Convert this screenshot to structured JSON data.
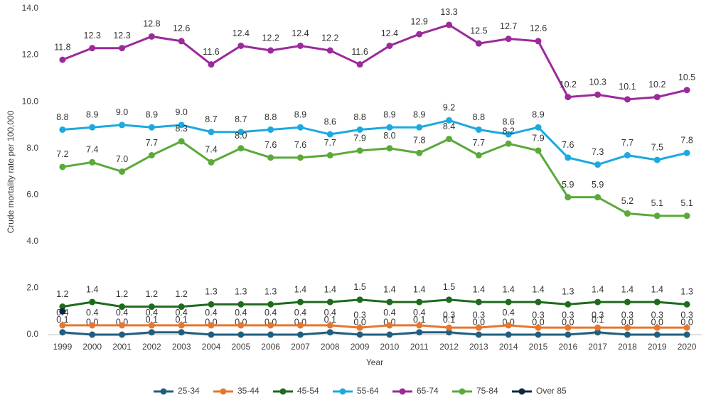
{
  "chart_data": {
    "type": "line",
    "y_label": "Crude mortality rate per 100,000",
    "x_label": "Year",
    "categories": [
      "1999",
      "2000",
      "2001",
      "2002",
      "2003",
      "2004",
      "2005",
      "2006",
      "2007",
      "2008",
      "2009",
      "2010",
      "2011",
      "2012",
      "2013",
      "2014",
      "2015",
      "2016",
      "2017",
      "2018",
      "2019",
      "2020"
    ],
    "ylim": [
      0,
      14
    ],
    "yticks": [
      {
        "value": 0,
        "label": "0.0"
      },
      {
        "value": 2,
        "label": "2.0"
      },
      {
        "value": 4,
        "label": "4.0"
      },
      {
        "value": 6,
        "label": "6.0"
      },
      {
        "value": 8,
        "label": "8.0"
      },
      {
        "value": 10,
        "label": "10.0"
      },
      {
        "value": 12,
        "label": "12.0"
      },
      {
        "value": 14,
        "label": "14.0"
      }
    ],
    "grid": false,
    "legend": "bottom",
    "series": [
      {
        "name": "25-34",
        "color": "#1f5f80",
        "values": [
          0.1,
          0.0,
          0.0,
          0.1,
          0.1,
          0.0,
          0.0,
          0.0,
          0.0,
          0.1,
          0.0,
          0.0,
          0.1,
          0.1,
          0.0,
          0.0,
          0.0,
          0.0,
          0.1,
          0.0,
          0.0,
          0.0
        ],
        "value_labels": [
          "0.1",
          "0.0",
          "0.0",
          "0.1",
          "0.1",
          "0.0",
          "0.0",
          "0.0",
          "0.0",
          "0.1",
          "0.0",
          "0.0",
          "0.1",
          "0.1",
          "0.0",
          "0.0",
          "0.0",
          "0.0",
          "0.1",
          "0.0",
          "0.0",
          "0.0"
        ]
      },
      {
        "name": "35-44",
        "color": "#e8762c",
        "values": [
          0.4,
          0.4,
          0.4,
          0.4,
          0.4,
          0.4,
          0.4,
          0.4,
          0.4,
          0.4,
          0.3,
          0.4,
          0.4,
          0.3,
          0.3,
          0.4,
          0.3,
          0.3,
          0.3,
          0.3,
          0.3,
          0.3
        ],
        "value_labels": [
          "0.4",
          "0.4",
          "0.4",
          "0.4",
          "0.4",
          "0.4",
          "0.4",
          "0.4",
          "0.4",
          "0.4",
          "0.3",
          "0.4",
          "0.4",
          "0.3",
          "0.3",
          "0.4",
          "0.3",
          "0.3",
          "0.3",
          "0.3",
          "0.3",
          "0.3"
        ]
      },
      {
        "name": "45-54",
        "color": "#1e6b1e",
        "values": [
          1.2,
          1.4,
          1.2,
          1.2,
          1.2,
          1.3,
          1.3,
          1.3,
          1.4,
          1.4,
          1.5,
          1.4,
          1.4,
          1.5,
          1.4,
          1.4,
          1.4,
          1.3,
          1.4,
          1.4,
          1.4,
          1.3
        ],
        "value_labels": [
          "1.2",
          "1.4",
          "1.2",
          "1.2",
          "1.2",
          "1.3",
          "1.3",
          "1.3",
          "1.4",
          "1.4",
          "1.5",
          "1.4",
          "1.4",
          "1.5",
          "1.4",
          "1.4",
          "1.4",
          "1.3",
          "1.4",
          "1.4",
          "1.4",
          "1.3"
        ]
      },
      {
        "name": "55-64",
        "color": "#1ca9e0",
        "values": [
          8.8,
          8.9,
          9.0,
          8.9,
          9.0,
          8.7,
          8.7,
          8.8,
          8.9,
          8.6,
          8.8,
          8.9,
          8.9,
          9.2,
          8.8,
          8.6,
          8.9,
          7.6,
          7.3,
          7.7,
          7.5,
          7.8
        ],
        "value_labels": [
          "8.8",
          "8.9",
          "9.0",
          "8.9",
          "9.0",
          "8.7",
          "8.7",
          "8.8",
          "8.9",
          "8.6",
          "8.8",
          "8.9",
          "8.9",
          "9.2",
          "8.8",
          "8.6",
          "8.9",
          "7.6",
          "7.3",
          "7.7",
          "7.5",
          "7.8"
        ]
      },
      {
        "name": "65-74",
        "color": "#9b2a9b",
        "values": [
          11.8,
          12.3,
          12.3,
          12.8,
          12.6,
          11.6,
          12.4,
          12.2,
          12.4,
          12.2,
          11.6,
          12.4,
          12.9,
          13.3,
          12.5,
          12.7,
          12.6,
          10.2,
          10.3,
          10.1,
          10.2,
          10.5
        ],
        "value_labels": [
          "11.8",
          "12.3",
          "12.3",
          "12.8",
          "12.6",
          "11.6",
          "12.4",
          "12.2",
          "12.4",
          "12.2",
          "11.6",
          "12.4",
          "12.9",
          "13.3",
          "12.5",
          "12.7",
          "12.6",
          "10.2",
          "10.3",
          "10.1",
          "10.2",
          "10.5"
        ]
      },
      {
        "name": "75-84",
        "color": "#5aaa3a",
        "values": [
          7.2,
          7.4,
          7.0,
          7.7,
          8.3,
          7.4,
          8.0,
          7.6,
          7.6,
          7.7,
          7.9,
          8.0,
          7.8,
          8.4,
          7.7,
          8.2,
          7.9,
          5.9,
          5.9,
          5.2,
          5.1,
          5.1
        ],
        "value_labels": [
          "7.2",
          "7.4",
          "7.0",
          "7.7",
          "8.3",
          "7.4",
          "8.0",
          "7.6",
          "7.6",
          "7.7",
          "7.9",
          "8.0",
          "7.8",
          "8.4",
          "7.7",
          "8.2",
          "7.9",
          "5.9",
          "5.9",
          "5.2",
          "5.1",
          "5.1"
        ]
      },
      {
        "name": "Over 85",
        "color": "#0e2841",
        "values": [
          1.0,
          null,
          null,
          null,
          null,
          null,
          null,
          null,
          null,
          null,
          null,
          null,
          null,
          null,
          null,
          null,
          null,
          null,
          null,
          null,
          null,
          null
        ]
      }
    ]
  }
}
